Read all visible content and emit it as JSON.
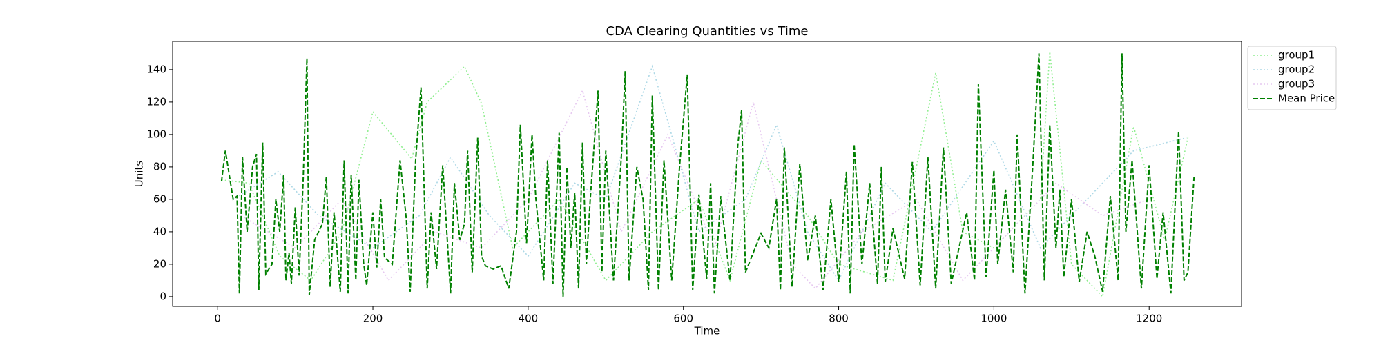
{
  "chart_data": {
    "type": "line",
    "title": "CDA Clearing Quantities vs Time",
    "xlabel": "Time",
    "ylabel": "Units",
    "xlim": [
      -58,
      1319
    ],
    "ylim": [
      -6,
      157.4
    ],
    "xticks": [
      0,
      200,
      400,
      600,
      800,
      1000,
      1200
    ],
    "yticks": [
      0,
      20,
      40,
      60,
      80,
      100,
      120,
      140
    ],
    "grid": false,
    "legend": "outside upper right",
    "series": [
      {
        "name": "group1",
        "color": "#90ee90",
        "linestyle": "dotted",
        "x": [
          5,
          40,
          80,
          120,
          160,
          200,
          250,
          270,
          318,
          340,
          380,
          440,
          500,
          560,
          620,
          660,
          700,
          760,
          800,
          870,
          925,
          960,
          1000,
          1060,
          1072,
          1100,
          1140,
          1180,
          1220,
          1250
        ],
        "values": [
          72,
          70,
          25,
          10,
          40,
          114,
          85,
          120,
          142,
          119,
          30,
          60,
          10,
          40,
          60,
          10,
          84,
          50,
          20,
          10,
          138,
          40,
          30,
          60,
          151,
          20,
          0,
          105,
          35,
          98
        ]
      },
      {
        "name": "group2",
        "color": "#add8e6",
        "linestyle": "dotted",
        "x": [
          20,
          78,
          130,
          200,
          260,
          300,
          350,
          400,
          460,
          500,
          560,
          620,
          680,
          720,
          760,
          800,
          860,
          920,
          1000,
          1060,
          1120,
          1180,
          1248
        ],
        "values": [
          60,
          77,
          50,
          30,
          50,
          86,
          50,
          25,
          70,
          60,
          142,
          40,
          60,
          106,
          40,
          10,
          70,
          40,
          96,
          30,
          60,
          90,
          98
        ]
      },
      {
        "name": "group3",
        "color": "#e6c8f0",
        "linestyle": "dotted",
        "x": [
          30,
          100,
          160,
          220,
          280,
          340,
          400,
          470,
          520,
          580,
          640,
          690,
          740,
          770,
          830,
          900,
          960,
          1020,
          1080,
          1140,
          1200
        ],
        "values": [
          50,
          30,
          60,
          10,
          40,
          30,
          60,
          127,
          40,
          100,
          30,
          120,
          20,
          5,
          40,
          60,
          10,
          40,
          70,
          50,
          60
        ]
      },
      {
        "name": "Mean Price",
        "color": "#008000",
        "linestyle": "dashed",
        "x": [
          5,
          10,
          20,
          25,
          28,
          32,
          38,
          45,
          50,
          53,
          58,
          62,
          70,
          75,
          80,
          85,
          88,
          92,
          95,
          100,
          105,
          110,
          115,
          118,
          125,
          135,
          140,
          145,
          150,
          158,
          163,
          168,
          172,
          178,
          182,
          188,
          192,
          200,
          205,
          210,
          215,
          225,
          235,
          243,
          248,
          255,
          262,
          270,
          275,
          282,
          290,
          300,
          305,
          312,
          318,
          322,
          328,
          335,
          340,
          345,
          355,
          365,
          375,
          385,
          390,
          398,
          405,
          410,
          420,
          425,
          432,
          440,
          445,
          450,
          455,
          460,
          465,
          470,
          475,
          480,
          490,
          495,
          500,
          510,
          520,
          525,
          530,
          540,
          548,
          555,
          560,
          568,
          575,
          585,
          595,
          605,
          612,
          620,
          630,
          635,
          640,
          648,
          660,
          670,
          675,
          680,
          700,
          710,
          720,
          725,
          730,
          740,
          750,
          760,
          770,
          780,
          790,
          800,
          810,
          815,
          820,
          830,
          840,
          850,
          855,
          860,
          870,
          885,
          895,
          905,
          915,
          925,
          935,
          945,
          955,
          965,
          975,
          980,
          990,
          1000,
          1005,
          1015,
          1025,
          1030,
          1040,
          1050,
          1058,
          1065,
          1072,
          1080,
          1085,
          1090,
          1100,
          1110,
          1120,
          1130,
          1140,
          1150,
          1160,
          1165,
          1170,
          1178,
          1190,
          1200,
          1210,
          1218,
          1228,
          1238,
          1245,
          1250,
          1258
        ],
        "values": [
          71,
          90,
          60,
          62,
          2,
          86,
          40,
          80,
          88,
          4,
          95,
          14,
          20,
          60,
          40,
          75,
          10,
          27,
          8,
          55,
          13,
          70,
          147,
          1,
          35,
          45,
          74,
          6,
          52,
          3,
          84,
          2,
          75,
          10,
          72,
          21,
          7,
          52,
          18,
          60,
          24,
          20,
          84,
          48,
          3,
          84,
          129,
          5,
          52,
          17,
          81,
          2,
          70,
          35,
          45,
          90,
          15,
          98,
          25,
          19,
          17,
          19,
          5,
          40,
          106,
          33,
          100,
          60,
          10,
          84,
          8,
          101,
          0,
          80,
          30,
          64,
          5,
          95,
          20,
          60,
          127,
          15,
          90,
          10,
          86,
          139,
          10,
          80,
          60,
          4,
          124,
          4,
          84,
          10,
          80,
          137,
          4,
          63,
          11,
          70,
          2,
          62,
          10,
          93,
          115,
          15,
          39,
          30,
          60,
          4,
          92,
          6,
          82,
          22,
          50,
          4,
          60,
          9,
          77,
          2,
          94,
          20,
          70,
          8,
          80,
          9,
          42,
          11,
          83,
          7,
          86,
          5,
          92,
          8,
          30,
          52,
          10,
          131,
          12,
          78,
          20,
          66,
          15,
          100,
          2,
          80,
          150,
          10,
          106,
          30,
          66,
          12,
          60,
          9,
          40,
          25,
          3,
          62,
          10,
          150,
          40,
          84,
          5,
          81,
          11,
          52,
          2,
          102,
          10,
          15,
          75
        ]
      }
    ]
  }
}
